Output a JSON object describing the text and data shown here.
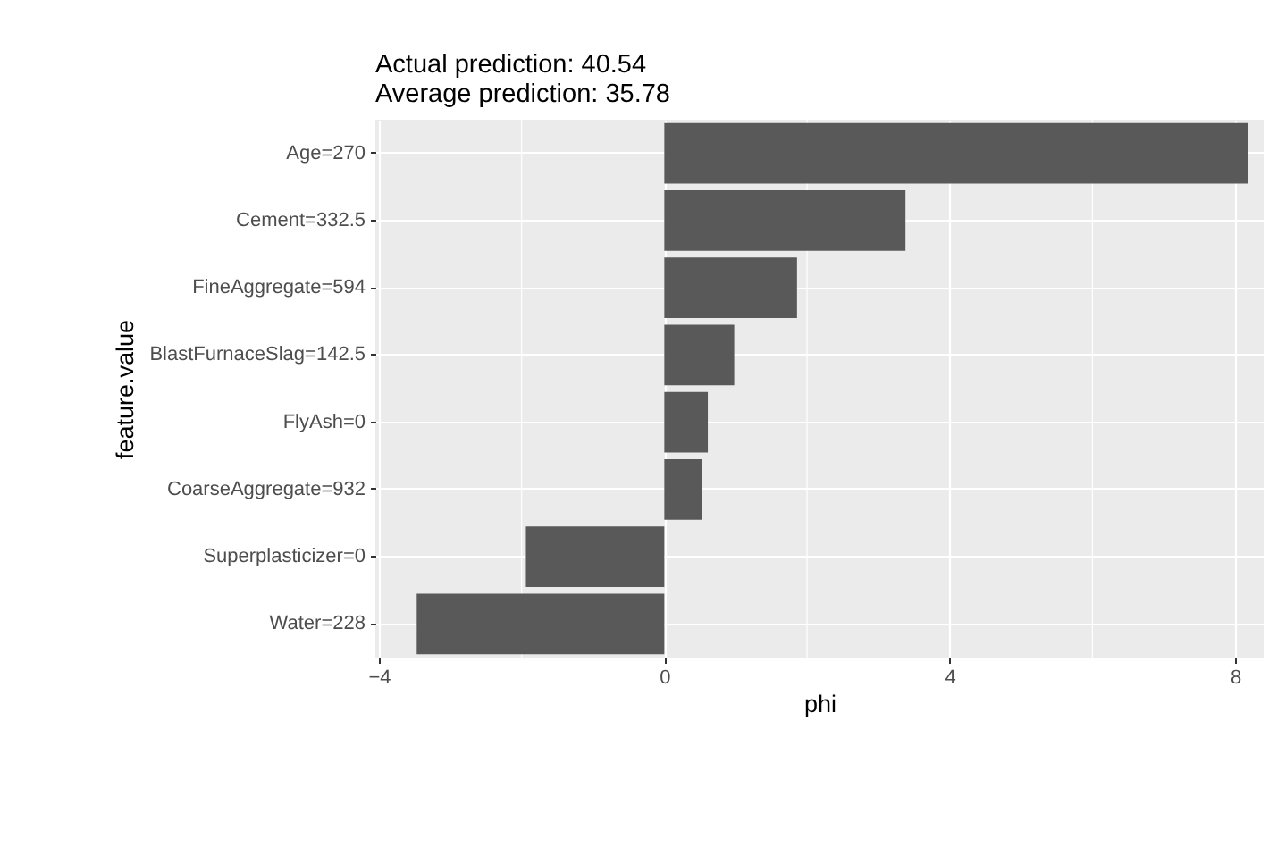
{
  "chart_data": {
    "type": "bar",
    "orientation": "horizontal",
    "title": "Actual prediction: 40.54",
    "subtitle": "Average prediction: 35.78",
    "xlabel": "phi",
    "ylabel": "feature.value",
    "categories": [
      "Age=270",
      "Cement=332.5",
      "FineAggregate=594",
      "BlastFurnaceSlag=142.5",
      "FlyAsh=0",
      "CoarseAggregate=932",
      "Superplasticizer=0",
      "Water=228"
    ],
    "values": [
      8.18,
      3.38,
      1.86,
      0.98,
      0.61,
      0.53,
      -1.94,
      -3.47
    ],
    "color": "#595959",
    "xlim": [
      -4.05,
      8.4
    ],
    "xticks": [
      -4,
      {
        "value": -2,
        "label": null
      },
      0,
      {
        "value": 2,
        "label": null
      },
      4,
      {
        "value": 6,
        "label": null
      },
      8
    ],
    "grid": true
  }
}
